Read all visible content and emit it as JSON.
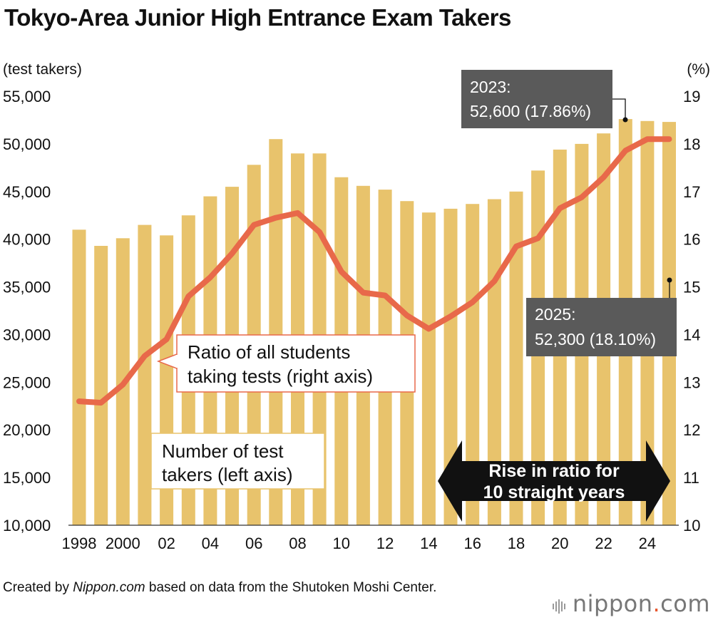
{
  "title": "Tokyo-Area Junior High Entrance Exam Takers",
  "colors": {
    "bar": "#e8c36c",
    "line": "#e8694a",
    "callout_bg": "#5a5a5a",
    "arrow": "#111111"
  },
  "chart_data": {
    "type": "bar",
    "years": [
      1998,
      1999,
      2000,
      2001,
      2002,
      2003,
      2004,
      2005,
      2006,
      2007,
      2008,
      2009,
      2010,
      2011,
      2012,
      2013,
      2014,
      2015,
      2016,
      2017,
      2018,
      2019,
      2020,
      2021,
      2022,
      2023,
      2024,
      2025
    ],
    "x_tick_labels": [
      "1998",
      "2000",
      "02",
      "04",
      "06",
      "08",
      "10",
      "12",
      "14",
      "16",
      "18",
      "20",
      "22",
      "24"
    ],
    "series": [
      {
        "name": "Number of test takers (left axis)",
        "axis": "left",
        "type": "bar",
        "values": [
          41000,
          39300,
          40100,
          41500,
          40400,
          42500,
          44500,
          45500,
          47800,
          50500,
          49000,
          49000,
          46500,
          45600,
          45200,
          44000,
          42800,
          43200,
          43700,
          44200,
          45000,
          47200,
          49400,
          50000,
          51100,
          52600,
          52400,
          52300
        ]
      },
      {
        "name": "Ratio of all students taking tests (right axis)",
        "axis": "right",
        "type": "line",
        "values": [
          12.6,
          12.57,
          12.95,
          13.55,
          13.9,
          14.8,
          15.2,
          15.7,
          16.3,
          16.45,
          16.55,
          16.15,
          15.32,
          14.88,
          14.82,
          14.4,
          14.12,
          14.38,
          14.68,
          15.12,
          15.85,
          16.02,
          16.65,
          16.88,
          17.3,
          17.86,
          18.1,
          18.1
        ]
      }
    ],
    "y_left": {
      "label": "(test takers)",
      "min": 10000,
      "max": 55000,
      "ticks": [
        "10,000",
        "15,000",
        "20,000",
        "25,000",
        "30,000",
        "35,000",
        "40,000",
        "45,000",
        "50,000",
        "55,000"
      ]
    },
    "y_right": {
      "label": "(%)",
      "min": 10,
      "max": 19,
      "ticks": [
        "10",
        "11",
        "12",
        "13",
        "14",
        "15",
        "16",
        "17",
        "18",
        "19"
      ]
    },
    "annotations": {
      "callout_2023": {
        "line1": "2023:",
        "line2": "52,600 (17.86%)"
      },
      "callout_2025": {
        "line1": "2025:",
        "line2": "52,300 (18.10%)"
      },
      "legend_ratio": {
        "line1": "Ratio of all students",
        "line2": "taking tests (right axis)"
      },
      "legend_count": {
        "line1": "Number of test",
        "line2": "takers (left axis)"
      },
      "arrow_note": {
        "line1": "Rise in ratio for",
        "line2": "10 straight years"
      }
    }
  },
  "footer": {
    "credit_prefix": "Created by ",
    "credit_source": "Nippon.com",
    "credit_suffix": " based on data from the Shutoken Moshi Center.",
    "brand_name": "nippon",
    "brand_dot": ".",
    "brand_tld": "com"
  }
}
